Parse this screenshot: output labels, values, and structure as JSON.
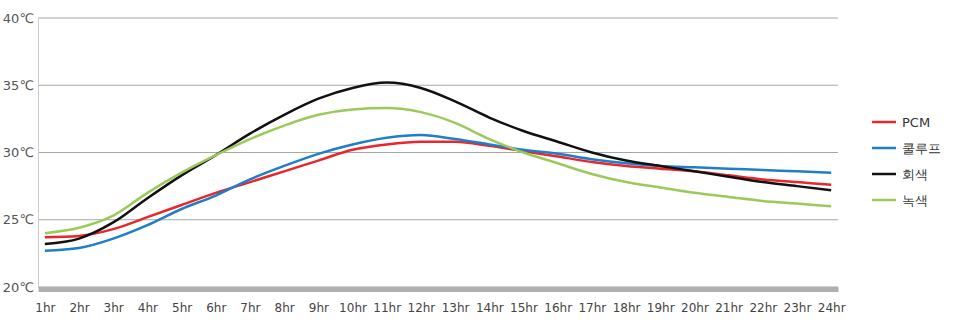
{
  "chart_data": {
    "type": "line",
    "categories": [
      "1hr",
      "2hr",
      "3hr",
      "4hr",
      "5hr",
      "6hr",
      "7hr",
      "8hr",
      "9hr",
      "10hr",
      "11hr",
      "12hr",
      "13hr",
      "14hr",
      "15hr",
      "16hr",
      "17hr",
      "18hr",
      "19hr",
      "20hr",
      "21hr",
      "22hr",
      "23hr",
      "24hr"
    ],
    "series": [
      {
        "name": "PCM",
        "color": "#e8262b",
        "values": [
          23.7,
          23.8,
          24.3,
          25.2,
          26.1,
          27.0,
          27.8,
          28.6,
          29.4,
          30.2,
          30.6,
          30.8,
          30.8,
          30.5,
          30.1,
          29.7,
          29.3,
          29.0,
          28.8,
          28.6,
          28.3,
          28.0,
          27.8,
          27.6
        ]
      },
      {
        "name": "쿨루프",
        "color": "#1f7ec8",
        "values": [
          22.7,
          22.9,
          23.6,
          24.6,
          25.8,
          26.8,
          28.0,
          29.0,
          29.9,
          30.6,
          31.1,
          31.3,
          31.0,
          30.6,
          30.2,
          29.9,
          29.5,
          29.2,
          29.0,
          28.9,
          28.8,
          28.7,
          28.6,
          28.5
        ]
      },
      {
        "name": "회색",
        "color": "#111111",
        "values": [
          23.2,
          23.6,
          24.8,
          26.6,
          28.3,
          29.8,
          31.4,
          32.8,
          34.0,
          34.8,
          35.2,
          34.8,
          33.8,
          32.6,
          31.6,
          30.8,
          30.0,
          29.4,
          29.0,
          28.6,
          28.2,
          27.8,
          27.5,
          27.2
        ]
      },
      {
        "name": "녹색",
        "color": "#9bc95a",
        "values": [
          24.0,
          24.4,
          25.3,
          27.0,
          28.5,
          29.8,
          31.0,
          32.0,
          32.8,
          33.2,
          33.3,
          33.0,
          32.2,
          31.0,
          30.0,
          29.2,
          28.4,
          27.8,
          27.4,
          27.0,
          26.7,
          26.4,
          26.2,
          26.0
        ]
      }
    ],
    "ylim": [
      20,
      40
    ],
    "yticks": [
      {
        "value": 20,
        "label": "20℃"
      },
      {
        "value": 25,
        "label": "25℃"
      },
      {
        "value": 30,
        "label": "30℃"
      },
      {
        "value": 35,
        "label": "35℃"
      },
      {
        "value": 40,
        "label": "40℃"
      }
    ],
    "grid": true,
    "legend": "right"
  }
}
